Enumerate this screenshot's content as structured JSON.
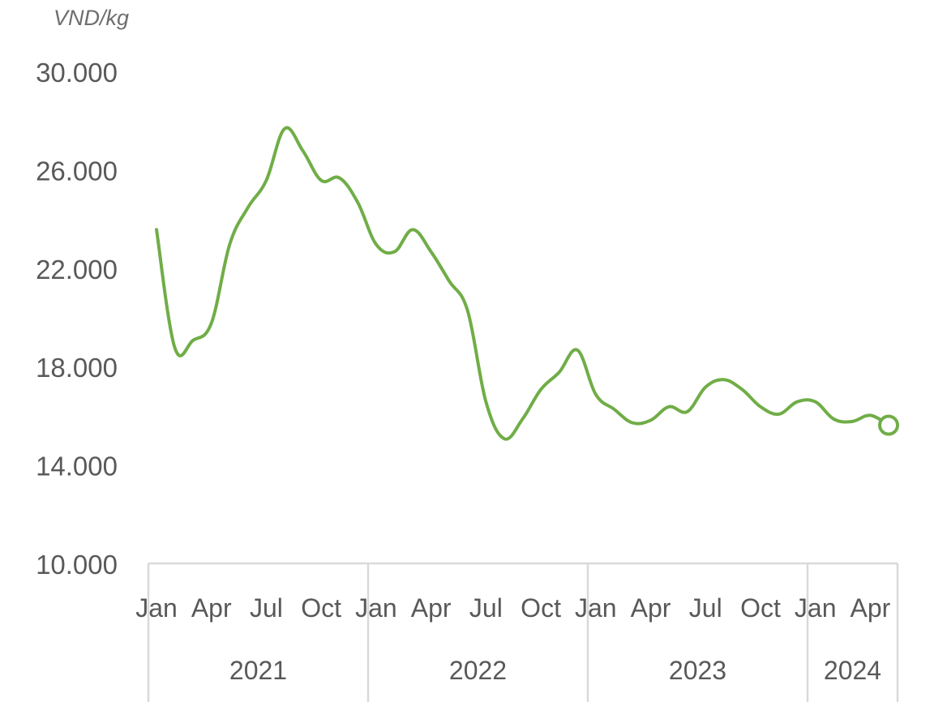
{
  "chart_data": {
    "type": "line",
    "unit_label": "VND/kg",
    "title": "",
    "xlabel": "",
    "ylabel": "VND/kg",
    "ylim": [
      10000,
      30000
    ],
    "yticks": [
      {
        "value": 10000,
        "label": "10.000"
      },
      {
        "value": 14000,
        "label": "14.000"
      },
      {
        "value": 18000,
        "label": "18.000"
      },
      {
        "value": 22000,
        "label": "22.000"
      },
      {
        "value": 26000,
        "label": "26.000"
      },
      {
        "value": 30000,
        "label": "30.000"
      }
    ],
    "month_ticks": [
      {
        "index": 0,
        "label": "Jan"
      },
      {
        "index": 3,
        "label": "Apr"
      },
      {
        "index": 6,
        "label": "Jul"
      },
      {
        "index": 9,
        "label": "Oct"
      },
      {
        "index": 12,
        "label": "Jan"
      },
      {
        "index": 15,
        "label": "Apr"
      },
      {
        "index": 18,
        "label": "Jul"
      },
      {
        "index": 21,
        "label": "Oct"
      },
      {
        "index": 24,
        "label": "Jan"
      },
      {
        "index": 27,
        "label": "Apr"
      },
      {
        "index": 30,
        "label": "Jul"
      },
      {
        "index": 33,
        "label": "Oct"
      },
      {
        "index": 36,
        "label": "Jan"
      },
      {
        "index": 39,
        "label": "Apr"
      }
    ],
    "years": [
      {
        "label": "2021",
        "start": 0,
        "end": 12
      },
      {
        "label": "2022",
        "start": 12,
        "end": 24
      },
      {
        "label": "2023",
        "start": 24,
        "end": 36
      },
      {
        "label": "2024",
        "start": 36,
        "end": 40
      }
    ],
    "grid": false,
    "legend": "none",
    "colors": {
      "series": "#70ad47",
      "axis": "#d9d9d9",
      "text": "#595959"
    },
    "series": [
      {
        "x": [
          "2021-01",
          "2021-02",
          "2021-03",
          "2021-04",
          "2021-05",
          "2021-06",
          "2021-07",
          "2021-08",
          "2021-09",
          "2021-10",
          "2021-11",
          "2021-12",
          "2022-01",
          "2022-02",
          "2022-03",
          "2022-04",
          "2022-05",
          "2022-06",
          "2022-07",
          "2022-08",
          "2022-09",
          "2022-10",
          "2022-11",
          "2022-12",
          "2023-01",
          "2023-02",
          "2023-03",
          "2023-04",
          "2023-05",
          "2023-06",
          "2023-07",
          "2023-08",
          "2023-09",
          "2023-10",
          "2023-11",
          "2023-12",
          "2024-01",
          "2024-02",
          "2024-03",
          "2024-04",
          "2024-05"
        ],
        "values": [
          23600,
          18800,
          19100,
          19800,
          23000,
          24500,
          25600,
          27700,
          26800,
          25600,
          25700,
          24700,
          23000,
          22700,
          23600,
          22700,
          21500,
          20300,
          16600,
          15100,
          15900,
          17100,
          17800,
          18700,
          16900,
          16300,
          15750,
          15850,
          16400,
          16200,
          17200,
          17500,
          17100,
          16400,
          16100,
          16600,
          16600,
          15900,
          15800,
          16050,
          15650
        ]
      }
    ]
  }
}
